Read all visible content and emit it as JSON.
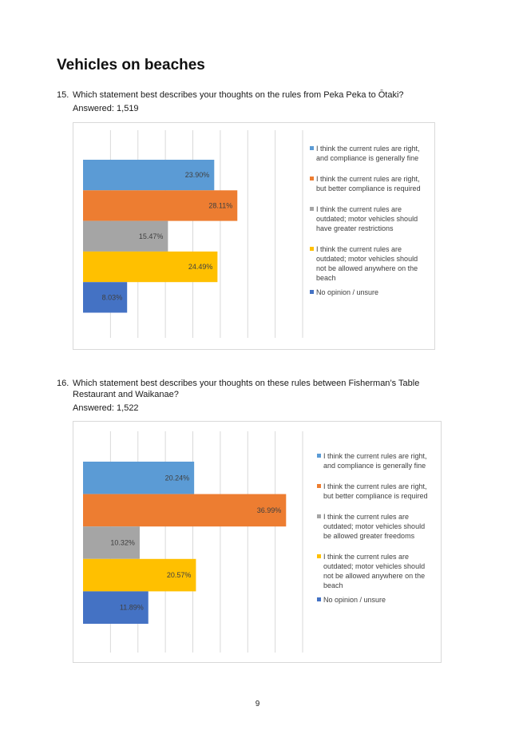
{
  "heading": "Vehicles on beaches",
  "page_number": "9",
  "colors": [
    "#5b9bd5",
    "#ed7d31",
    "#a5a5a5",
    "#ffc000",
    "#4472c4"
  ],
  "questions": [
    {
      "number": "15.",
      "text": "Which statement best describes your thoughts on the rules from Peka Peka to Ōtaki?",
      "answered": "Answered: 1,519"
    },
    {
      "number": "16.",
      "text": "Which statement best describes your thoughts on these rules between Fisherman’s Table Restaurant and Waikanae?",
      "answered": "Answered: 1,522"
    }
  ],
  "chart_data": [
    {
      "type": "bar",
      "orientation": "horizontal",
      "xlim": [
        0,
        40
      ],
      "grid": true,
      "legend_position": "right",
      "series": [
        {
          "name": "I think the current rules are right, and compliance is generally fine",
          "value": 23.9,
          "label": "23.90%"
        },
        {
          "name": "I think the current rules are right, but better compliance is required",
          "value": 28.11,
          "label": "28.11%"
        },
        {
          "name": "I think the current rules are outdated; motor vehicles should have greater restrictions",
          "value": 15.47,
          "label": "15.47%"
        },
        {
          "name": "I think the current rules are outdated; motor vehicles should not be allowed anywhere on the beach",
          "value": 24.49,
          "label": "24.49%"
        },
        {
          "name": "No opinion / unsure",
          "value": 8.03,
          "label": "8.03%"
        }
      ]
    },
    {
      "type": "bar",
      "orientation": "horizontal",
      "xlim": [
        0,
        40
      ],
      "grid": true,
      "legend_position": "right",
      "series": [
        {
          "name": "I think the current rules are right, and compliance is generally fine",
          "value": 20.24,
          "label": "20.24%"
        },
        {
          "name": "I think the current rules are right, but better compliance is required",
          "value": 36.99,
          "label": "36.99%"
        },
        {
          "name": "I think the current rules are outdated; motor vehicles should be allowed greater freedoms",
          "value": 10.32,
          "label": "10.32%"
        },
        {
          "name": "I think the current rules are outdated; motor vehicles should not be allowed anywhere on the beach",
          "value": 20.57,
          "label": "20.57%"
        },
        {
          "name": "No opinion / unsure",
          "value": 11.89,
          "label": "11.89%"
        }
      ]
    }
  ]
}
